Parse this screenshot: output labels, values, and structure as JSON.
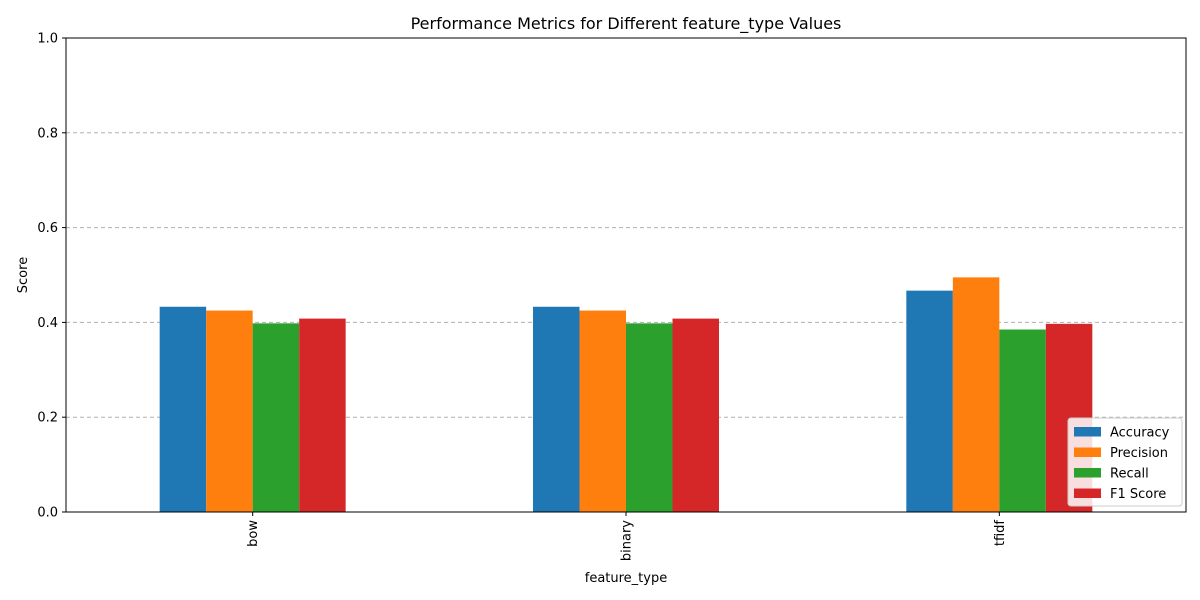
{
  "chart_data": {
    "type": "bar",
    "title": "Performance Metrics for Different feature_type Values",
    "xlabel": "feature_type",
    "ylabel": "Score",
    "categories": [
      "bow",
      "binary",
      "tfidf"
    ],
    "series": [
      {
        "name": "Accuracy",
        "values": [
          0.433,
          0.433,
          0.467
        ],
        "color": "#1f77b4"
      },
      {
        "name": "Precision",
        "values": [
          0.425,
          0.425,
          0.495
        ],
        "color": "#ff7f0e"
      },
      {
        "name": "Recall",
        "values": [
          0.398,
          0.398,
          0.385
        ],
        "color": "#2ca02c"
      },
      {
        "name": "F1 Score",
        "values": [
          0.408,
          0.408,
          0.397
        ],
        "color": "#d62728"
      }
    ],
    "ylim": [
      0,
      1.0
    ],
    "yticks": [
      "0.0",
      "0.2",
      "0.4",
      "0.6",
      "0.8",
      "1.0"
    ],
    "grid": "y-dashed",
    "legend_position": "lower-right"
  }
}
